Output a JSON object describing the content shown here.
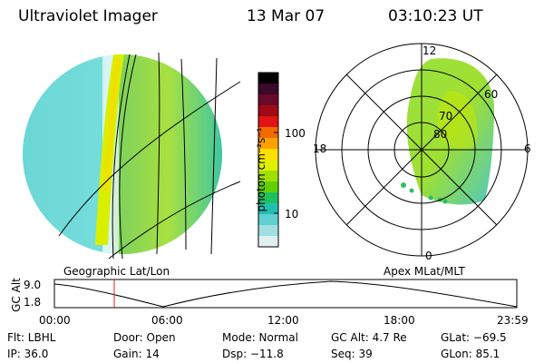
{
  "header": {
    "instrument": "Ultraviolet Imager",
    "date": "13 Mar 07",
    "time": "03:10:23 UT"
  },
  "globe": {
    "label": "Geographic Lat/Lon"
  },
  "colorbar": {
    "axis_label": "photon cm⁻²s⁻¹",
    "ticks": [
      "100",
      "10"
    ],
    "colors": [
      "#000000",
      "#3a0a2a",
      "#6a0a2a",
      "#a00a14",
      "#e01414",
      "#f06a00",
      "#ffa000",
      "#ffe000",
      "#e0f000",
      "#a0e000",
      "#60d000",
      "#20c060",
      "#20c0b0",
      "#60d0d0",
      "#a0e0e0",
      "#e0f0f0"
    ]
  },
  "polar": {
    "label": "Apex MLat/MLT",
    "mlt_labels": [
      "12",
      "18",
      "6",
      "0"
    ],
    "lat_labels": [
      "60",
      "70",
      "80"
    ]
  },
  "altitude_plot": {
    "ylabel": "GC Alt",
    "yticks": [
      "9.0",
      "1.8"
    ],
    "xticks": [
      "00:00",
      "06:00",
      "12:00",
      "18:00",
      "23:59"
    ],
    "marker_color": "#e02020"
  },
  "info": {
    "row1": [
      "Flt: LBHL",
      "Door: Open",
      "Mode: Normal",
      "GC Alt: 4.7 Re",
      "GLat: −69.5"
    ],
    "row2": [
      "IP: 36.0",
      "Gain: 14",
      "Dsp:  −11.8",
      "Seq: 39",
      "GLon:  85.1"
    ]
  }
}
